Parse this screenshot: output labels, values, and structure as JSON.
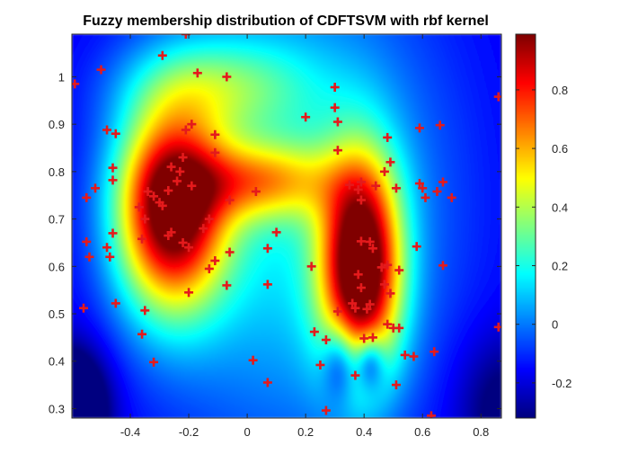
{
  "chart_data": {
    "type": "heatmap",
    "title": "Fuzzy membership distribution of CDFTSVM  with rbf kernel",
    "xlabel": "",
    "ylabel": "",
    "xlim": [
      -0.6,
      0.87
    ],
    "ylim": [
      0.28,
      1.09
    ],
    "x_ticks": [
      -0.4,
      -0.2,
      0,
      0.2,
      0.4,
      0.6,
      0.8
    ],
    "x_tick_labels": [
      "-0.4",
      "-0.2",
      "0",
      "0.2",
      "0.4",
      "0.6",
      "0.8"
    ],
    "y_ticks": [
      0.3,
      0.4,
      0.5,
      0.6,
      0.7,
      0.8,
      0.9,
      1.0
    ],
    "y_tick_labels": [
      "0.3",
      "0.4",
      "0.5",
      "0.6",
      "0.7",
      "0.8",
      "0.9",
      "1"
    ],
    "colorbar": {
      "colormap": "jet",
      "clim": [
        -0.32,
        0.99
      ],
      "ticks": [
        -0.2,
        0,
        0.2,
        0.4,
        0.6,
        0.8
      ],
      "tick_labels": [
        "-0.2",
        "0",
        "0.2",
        "0.4",
        "0.6",
        "0.8"
      ]
    },
    "membership_peaks": [
      {
        "x": -0.26,
        "y": 0.72,
        "value": 0.97
      },
      {
        "x": 0.39,
        "y": 0.6,
        "value": 0.99
      }
    ],
    "marker": {
      "symbol": "+",
      "color": "#e41a1c"
    },
    "points": [
      [
        -0.59,
        0.985
      ],
      [
        -0.5,
        1.015
      ],
      [
        -0.21,
        1.09
      ],
      [
        -0.29,
        1.045
      ],
      [
        -0.17,
        1.008
      ],
      [
        -0.07,
        1.0
      ],
      [
        -0.48,
        0.888
      ],
      [
        -0.45,
        0.88
      ],
      [
        -0.21,
        0.888
      ],
      [
        -0.19,
        0.9
      ],
      [
        -0.11,
        0.878
      ],
      [
        -0.11,
        0.84
      ],
      [
        -0.46,
        0.808
      ],
      [
        -0.46,
        0.782
      ],
      [
        -0.26,
        0.81
      ],
      [
        -0.23,
        0.8
      ],
      [
        -0.22,
        0.83
      ],
      [
        -0.52,
        0.765
      ],
      [
        -0.55,
        0.745
      ],
      [
        -0.34,
        0.758
      ],
      [
        -0.32,
        0.748
      ],
      [
        -0.3,
        0.735
      ],
      [
        -0.29,
        0.728
      ],
      [
        -0.27,
        0.76
      ],
      [
        -0.24,
        0.78
      ],
      [
        -0.19,
        0.77
      ],
      [
        -0.06,
        0.74
      ],
      [
        -0.37,
        0.725
      ],
      [
        -0.35,
        0.7
      ],
      [
        -0.46,
        0.67
      ],
      [
        -0.48,
        0.64
      ],
      [
        -0.47,
        0.62
      ],
      [
        -0.55,
        0.652
      ],
      [
        -0.54,
        0.62
      ],
      [
        -0.36,
        0.658
      ],
      [
        -0.26,
        0.672
      ],
      [
        -0.27,
        0.665
      ],
      [
        -0.22,
        0.65
      ],
      [
        -0.2,
        0.64
      ],
      [
        -0.15,
        0.68
      ],
      [
        -0.13,
        0.7
      ],
      [
        -0.11,
        0.612
      ],
      [
        -0.13,
        0.595
      ],
      [
        -0.06,
        0.63
      ],
      [
        -0.07,
        0.56
      ],
      [
        -0.2,
        0.545
      ],
      [
        -0.45,
        0.522
      ],
      [
        -0.56,
        0.512
      ],
      [
        -0.35,
        0.507
      ],
      [
        -0.36,
        0.457
      ],
      [
        -0.32,
        0.398
      ],
      [
        0.03,
        0.758
      ],
      [
        0.1,
        0.672
      ],
      [
        0.07,
        0.638
      ],
      [
        0.07,
        0.562
      ],
      [
        0.02,
        0.402
      ],
      [
        0.07,
        0.355
      ],
      [
        0.2,
        0.915
      ],
      [
        0.3,
        0.978
      ],
      [
        0.3,
        0.935
      ],
      [
        0.31,
        0.905
      ],
      [
        0.31,
        0.845
      ],
      [
        0.22,
        0.6
      ],
      [
        0.31,
        0.505
      ],
      [
        0.23,
        0.462
      ],
      [
        0.27,
        0.445
      ],
      [
        0.25,
        0.392
      ],
      [
        0.27,
        0.296
      ],
      [
        0.35,
        0.772
      ],
      [
        0.39,
        0.778
      ],
      [
        0.38,
        0.762
      ],
      [
        0.39,
        0.74
      ],
      [
        0.44,
        0.77
      ],
      [
        0.47,
        0.8
      ],
      [
        0.49,
        0.82
      ],
      [
        0.48,
        0.872
      ],
      [
        0.51,
        0.765
      ],
      [
        0.59,
        0.892
      ],
      [
        0.59,
        0.775
      ],
      [
        0.6,
        0.765
      ],
      [
        0.61,
        0.745
      ],
      [
        0.65,
        0.758
      ],
      [
        0.67,
        0.778
      ],
      [
        0.66,
        0.898
      ],
      [
        0.7,
        0.745
      ],
      [
        0.58,
        0.642
      ],
      [
        0.67,
        0.602
      ],
      [
        0.39,
        0.653
      ],
      [
        0.42,
        0.652
      ],
      [
        0.43,
        0.638
      ],
      [
        0.38,
        0.583
      ],
      [
        0.39,
        0.555
      ],
      [
        0.36,
        0.522
      ],
      [
        0.37,
        0.512
      ],
      [
        0.41,
        0.51
      ],
      [
        0.42,
        0.52
      ],
      [
        0.46,
        0.598
      ],
      [
        0.48,
        0.603
      ],
      [
        0.52,
        0.592
      ],
      [
        0.47,
        0.562
      ],
      [
        0.49,
        0.543
      ],
      [
        0.48,
        0.478
      ],
      [
        0.5,
        0.47
      ],
      [
        0.52,
        0.47
      ],
      [
        0.4,
        0.448
      ],
      [
        0.43,
        0.45
      ],
      [
        0.37,
        0.37
      ],
      [
        0.51,
        0.35
      ],
      [
        0.54,
        0.413
      ],
      [
        0.57,
        0.41
      ],
      [
        0.64,
        0.42
      ],
      [
        0.63,
        0.285
      ],
      [
        0.86,
        0.958
      ],
      [
        0.86,
        0.472
      ]
    ]
  }
}
